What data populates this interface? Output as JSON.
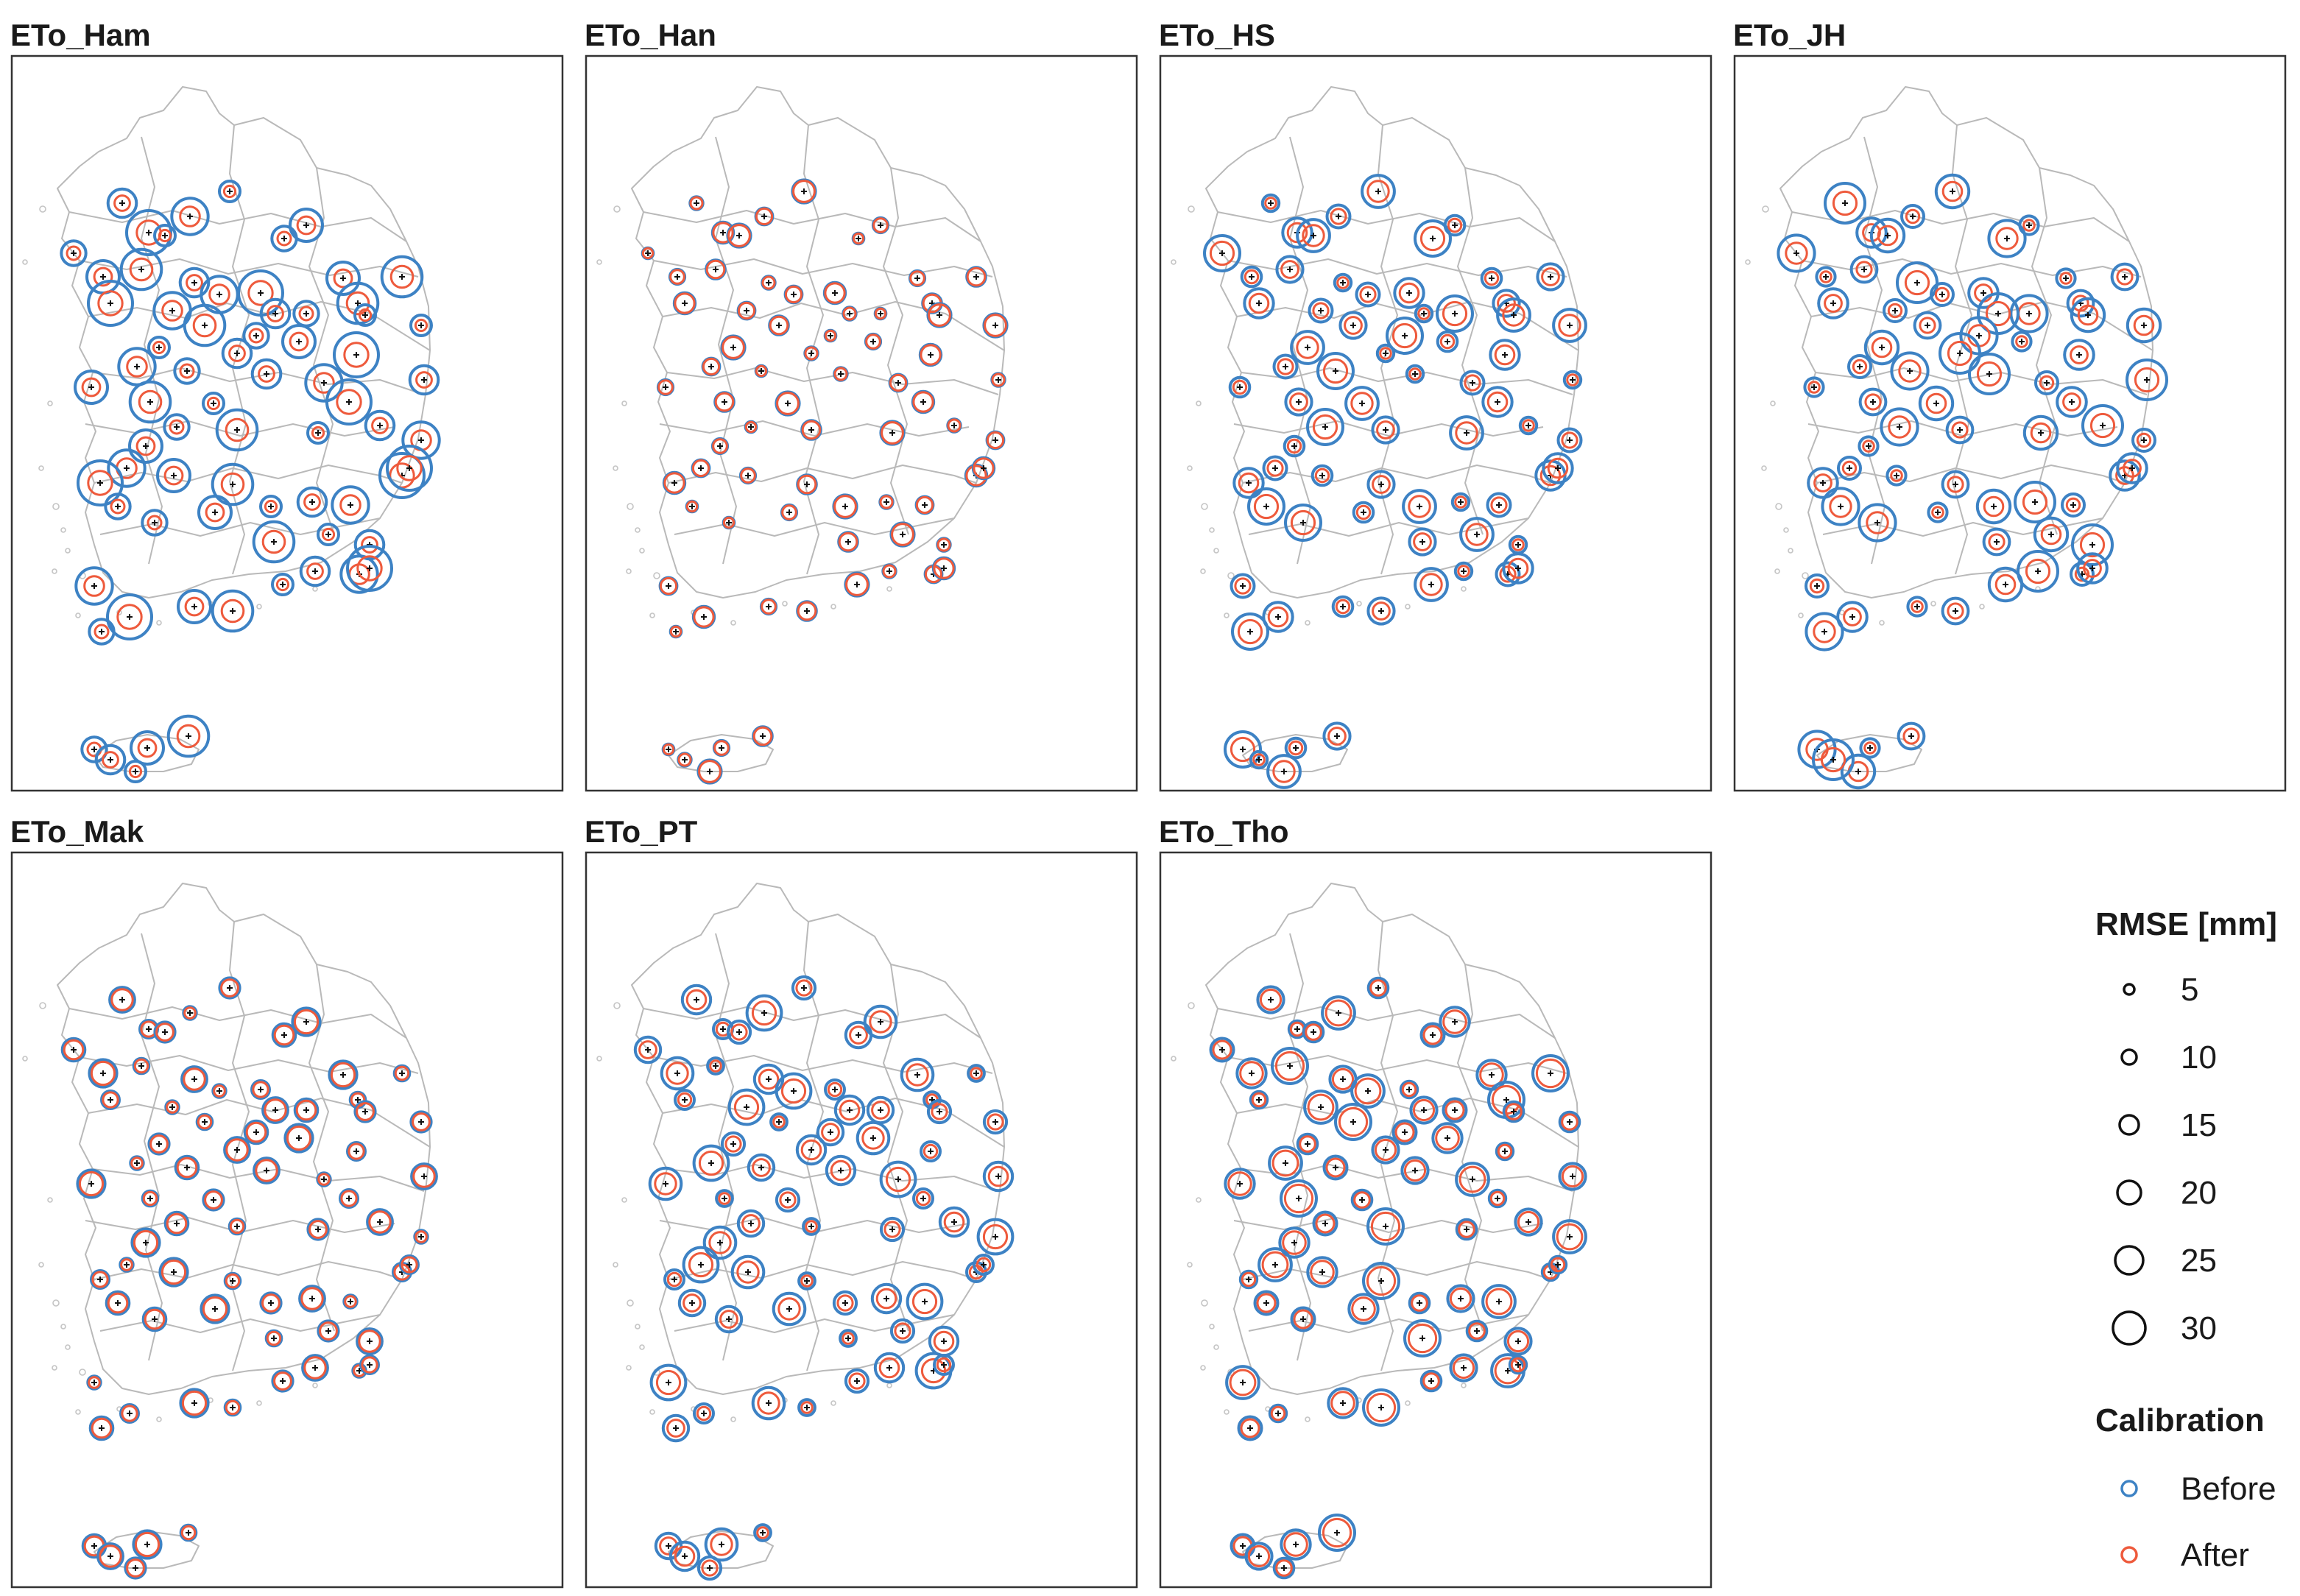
{
  "colors": {
    "before": "#3d82c4",
    "after": "#ee5a3c",
    "boundary": "#b9b9b9",
    "frame": "#333333",
    "station_mark": "#111111"
  },
  "panels": [
    {
      "id": "Ham",
      "title": "ETo_Ham",
      "before_scale": 1.0,
      "after_scale": 0.54
    },
    {
      "id": "Han",
      "title": "ETo_Han",
      "before_scale": 0.52,
      "after_scale": 0.48
    },
    {
      "id": "HS",
      "title": "ETo_HS",
      "before_scale": 0.8,
      "after_scale": 0.52
    },
    {
      "id": "JH",
      "title": "ETo_JH",
      "before_scale": 0.9,
      "after_scale": 0.52
    },
    {
      "id": "Mak",
      "title": "ETo_Mak",
      "before_scale": 0.62,
      "after_scale": 0.52
    },
    {
      "id": "PT",
      "title": "ETo_PT",
      "before_scale": 0.78,
      "after_scale": 0.52
    },
    {
      "id": "Tho",
      "title": "ETo_Tho",
      "before_scale": 0.8,
      "after_scale": 0.62
    }
  ],
  "legend": {
    "size_title": "RMSE [mm]",
    "size_items": [
      {
        "label": "5",
        "value": 5
      },
      {
        "label": "10",
        "value": 10
      },
      {
        "label": "15",
        "value": 15
      },
      {
        "label": "20",
        "value": 20
      },
      {
        "label": "25",
        "value": 25
      },
      {
        "label": "30",
        "value": 30
      }
    ],
    "color_title": "Calibration",
    "color_items": [
      {
        "label": "Before",
        "key": "before"
      },
      {
        "label": "After",
        "key": "after"
      }
    ]
  }
}
